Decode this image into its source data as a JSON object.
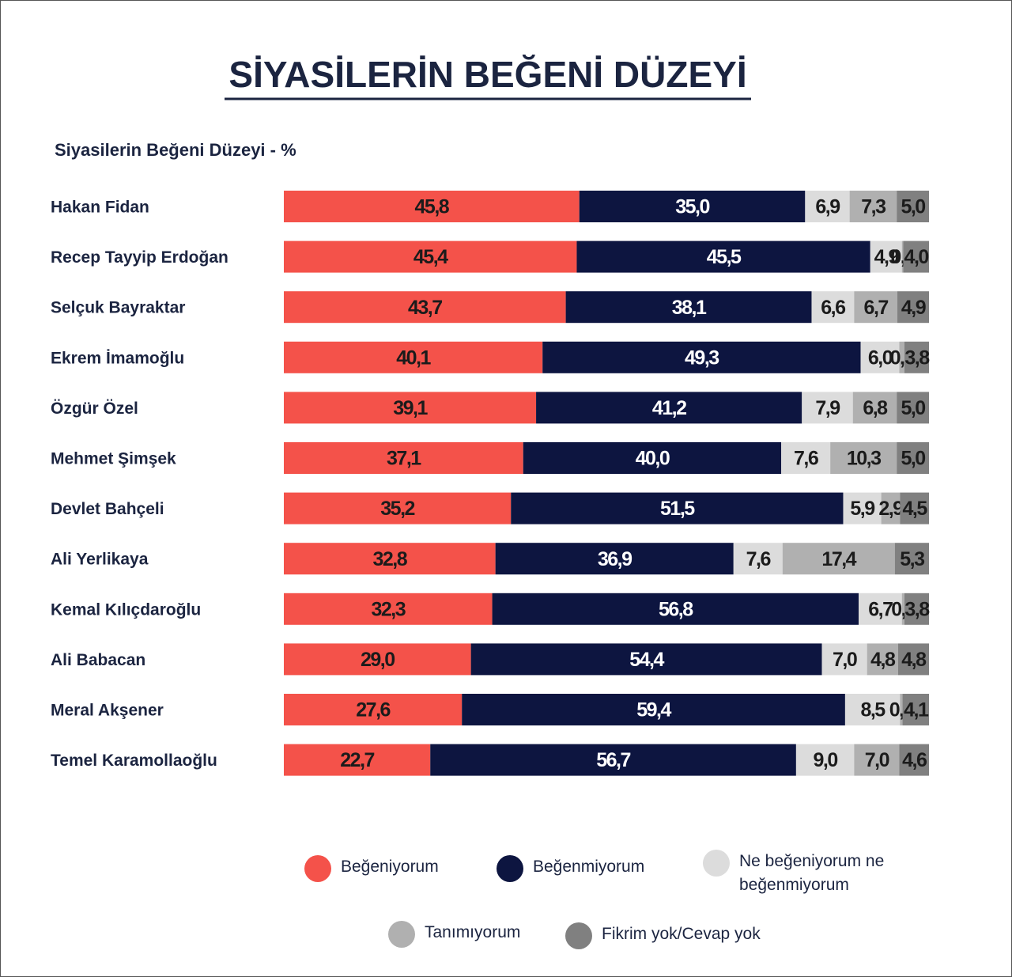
{
  "chart_data": {
    "type": "stacked-bar-horizontal",
    "title": "SİYASİLERİN BEĞENİ DÜZEYİ",
    "subtitle": "Siyasilerin Beğeni Düzeyi - %",
    "categories": [
      "Hakan Fidan",
      "Recep Tayyip Erdoğan",
      "Selçuk Bayraktar",
      "Ekrem İmamoğlu",
      "Özgür Özel",
      "Mehmet Şimşek",
      "Devlet Bahçeli",
      "Ali Yerlikaya",
      "Kemal Kılıçdaroğlu",
      "Ali Babacan",
      "Meral Akşener",
      "Temel Karamollaoğlu"
    ],
    "xlim": [
      0,
      100
    ],
    "series": [
      {
        "name": "Beğeniyorum",
        "color": "#f4524a",
        "values": [
          45.8,
          45.4,
          43.7,
          40.1,
          39.1,
          37.1,
          35.2,
          32.8,
          32.3,
          29.0,
          27.6,
          22.7
        ],
        "value_labels": [
          "45,8",
          "45,4",
          "43,7",
          "40,1",
          "39,1",
          "37,1",
          "35,2",
          "32,8",
          "32,3",
          "29,0",
          "27,6",
          "22,7"
        ]
      },
      {
        "name": "Beğenmiyorum",
        "color": "#0d1540",
        "values": [
          35.0,
          45.5,
          38.1,
          49.3,
          41.2,
          40.0,
          51.5,
          36.9,
          56.8,
          54.4,
          59.4,
          56.7
        ],
        "value_labels": [
          "35,0",
          "45,5",
          "38,1",
          "49,3",
          "41,2",
          "40,0",
          "51,5",
          "36,9",
          "56,8",
          "54,4",
          "59,4",
          "56,7"
        ]
      },
      {
        "name": "Ne beğeniyorum ne beğenmiyorum",
        "color": "#dcdcdc",
        "values": [
          6.9,
          4.9,
          6.6,
          6.0,
          7.9,
          7.6,
          5.9,
          7.6,
          6.7,
          7.0,
          8.5,
          9.0
        ],
        "value_labels": [
          "6,9",
          "4,9",
          "6,6",
          "6,0",
          "7,9",
          "7,6",
          "5,9",
          "7,6",
          "6,7",
          "7,0",
          "8,5",
          "9,0"
        ]
      },
      {
        "name": "Tanımıyorum",
        "color": "#b0b0b0",
        "values": [
          7.3,
          0.2,
          6.7,
          0.8,
          6.8,
          10.3,
          2.9,
          17.4,
          0.4,
          4.8,
          0.4,
          7.0
        ],
        "value_labels": [
          "7,3",
          "0,2",
          "6,7",
          "0,8",
          "6,8",
          "10,3",
          "2,9",
          "17,4",
          "0,4",
          "4,8",
          "0,4",
          "7,0"
        ]
      },
      {
        "name": "Fikrim yok/Cevap yok",
        "color": "#808080",
        "values": [
          5.0,
          4.0,
          4.9,
          3.8,
          5.0,
          5.0,
          4.5,
          5.3,
          3.8,
          4.8,
          4.1,
          4.6
        ],
        "value_labels": [
          "5,0",
          "4,0",
          "4,9",
          "3,8",
          "5,0",
          "5,0",
          "4,5",
          "5,3",
          "3,8",
          "4,8",
          "4,1",
          "4,6"
        ]
      }
    ]
  }
}
